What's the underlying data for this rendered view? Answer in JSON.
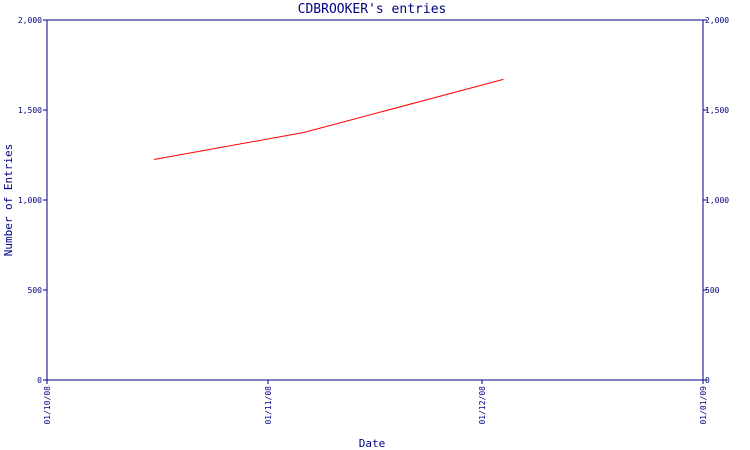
{
  "chart_data": {
    "type": "line",
    "title": "CDBROOKER's entries",
    "xlabel": "Date",
    "ylabel": "Number of Entries",
    "ylim": [
      0,
      2000
    ],
    "y_ticks": [
      0,
      500,
      1000,
      1500,
      2000
    ],
    "y_tick_labels": [
      "0",
      "500",
      "1,000",
      "1,500",
      "2,000"
    ],
    "x_ticks": [
      "2008-10-01",
      "2008-11-01",
      "2008-12-01",
      "2009-01-01"
    ],
    "x_tick_labels": [
      "01/10/08",
      "01/11/08",
      "01/12/08",
      "01/01/09"
    ],
    "xlim": [
      "2008-10-01",
      "2009-01-01"
    ],
    "grid": false,
    "series": [
      {
        "x": [
          "2008-10-16",
          "2008-11-06",
          "2008-12-04"
        ],
        "y": [
          1225,
          1375,
          1670
        ]
      }
    ]
  },
  "colors": {
    "axis": "#000080",
    "text": "#000080",
    "line": "#ff0000",
    "background": "#ffffff"
  }
}
